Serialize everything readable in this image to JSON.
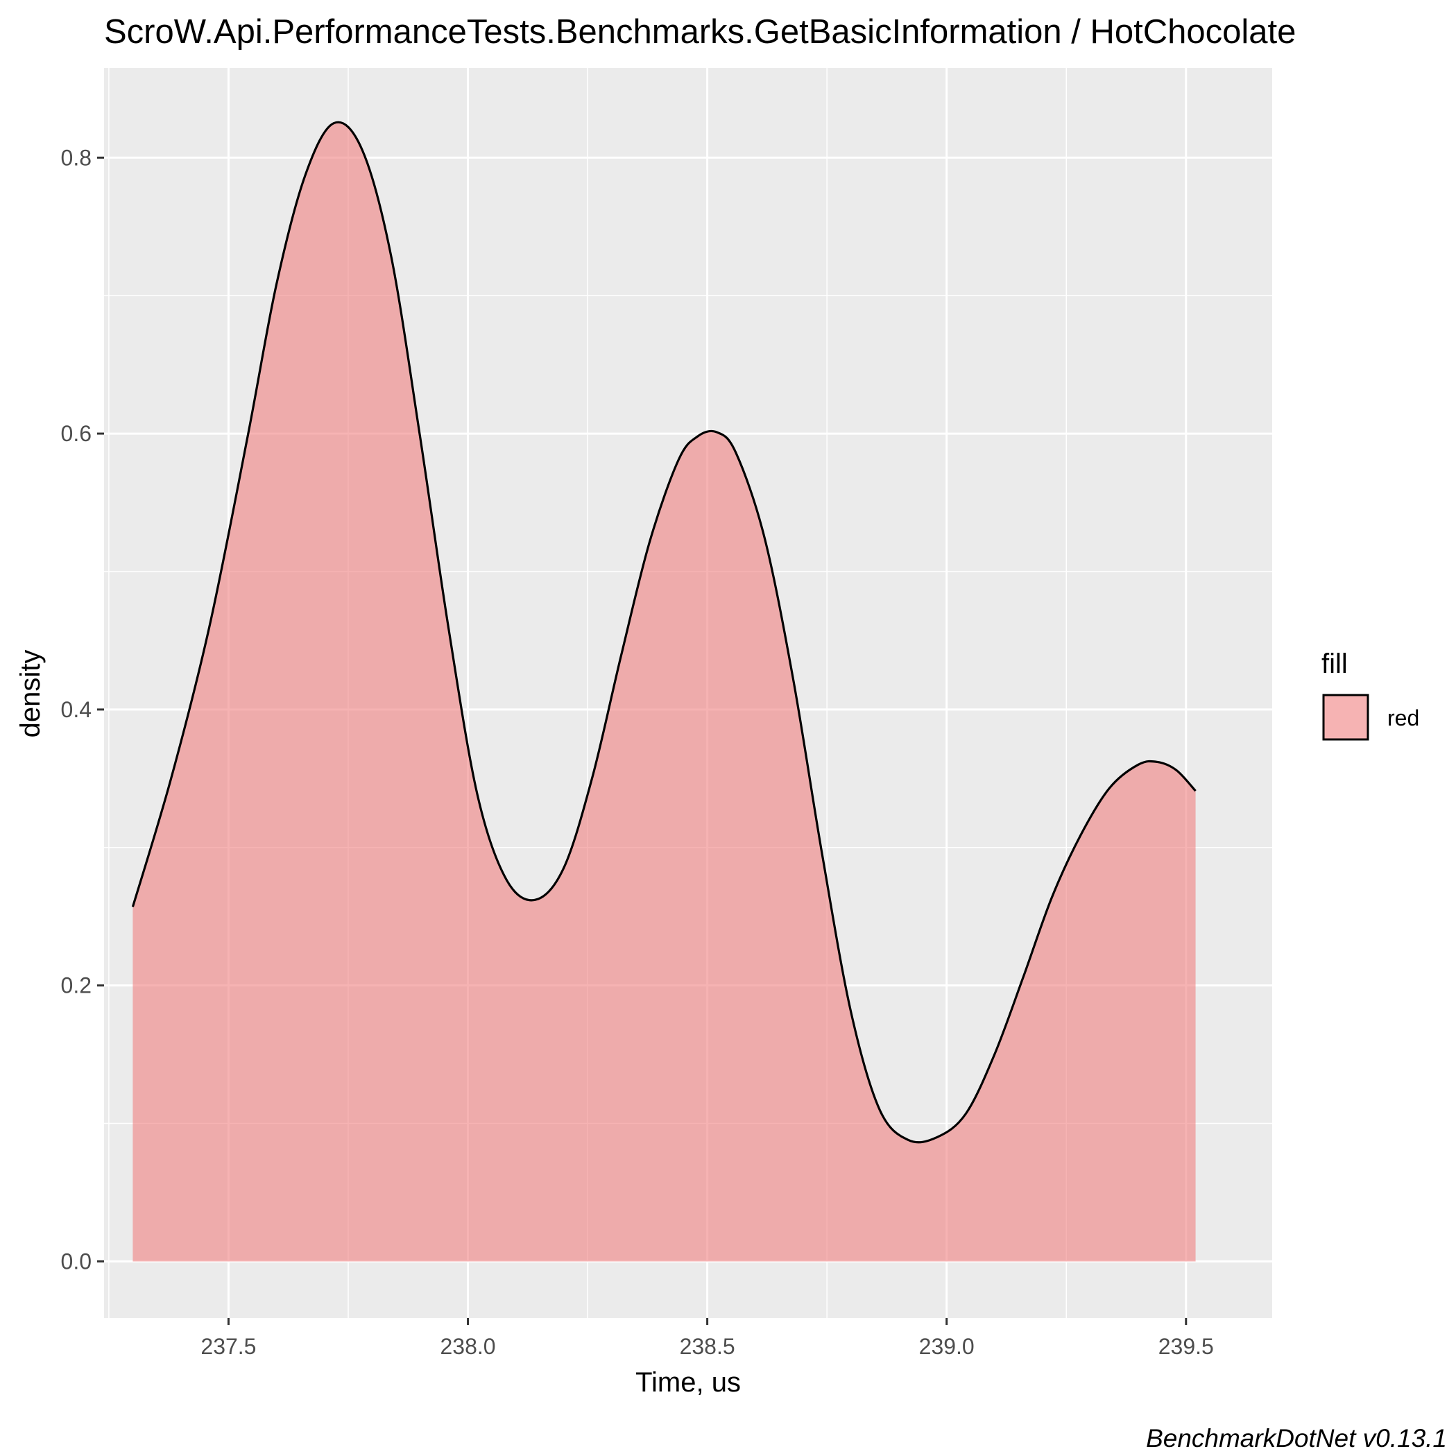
{
  "chart_data": {
    "type": "area",
    "title": "ScroW.Api.PerformanceTests.Benchmarks.GetBasicInformation / HotChocolate",
    "xlabel": "Time, us",
    "ylabel": "density",
    "caption": "BenchmarkDotNet v0.13.1",
    "xlim": [
      237.24,
      239.68
    ],
    "ylim": [
      -0.041,
      0.865
    ],
    "x_ticks": [
      237.5,
      238.0,
      238.5,
      239.0,
      239.5
    ],
    "x_tick_labels": [
      "237.5",
      "238.0",
      "238.5",
      "239.0",
      "239.5"
    ],
    "y_ticks": [
      0.0,
      0.2,
      0.4,
      0.6,
      0.8
    ],
    "y_tick_labels": [
      "0.0",
      "0.2",
      "0.4",
      "0.6",
      "0.8"
    ],
    "grid": true,
    "legend": {
      "title": "fill",
      "placement": "right",
      "entries": [
        "red"
      ]
    },
    "series": [
      {
        "name": "red",
        "fill_color": "#f08080",
        "line_color": "#000000",
        "x": [
          237.3,
          237.38,
          237.46,
          237.54,
          237.6,
          237.66,
          237.72,
          237.78,
          237.84,
          237.9,
          237.96,
          238.02,
          238.08,
          238.14,
          238.2,
          238.26,
          238.32,
          238.38,
          238.44,
          238.48,
          238.52,
          238.56,
          238.62,
          238.68,
          238.74,
          238.8,
          238.86,
          238.92,
          238.98,
          239.04,
          239.1,
          239.16,
          239.22,
          239.28,
          239.34,
          239.4,
          239.44,
          239.48,
          239.52
        ],
        "y": [
          0.257,
          0.35,
          0.46,
          0.598,
          0.708,
          0.787,
          0.825,
          0.805,
          0.728,
          0.598,
          0.458,
          0.338,
          0.277,
          0.262,
          0.285,
          0.351,
          0.439,
          0.522,
          0.581,
          0.598,
          0.601,
          0.586,
          0.524,
          0.421,
          0.295,
          0.181,
          0.11,
          0.088,
          0.09,
          0.107,
          0.15,
          0.206,
          0.264,
          0.309,
          0.343,
          0.36,
          0.362,
          0.356,
          0.341
        ]
      }
    ]
  }
}
